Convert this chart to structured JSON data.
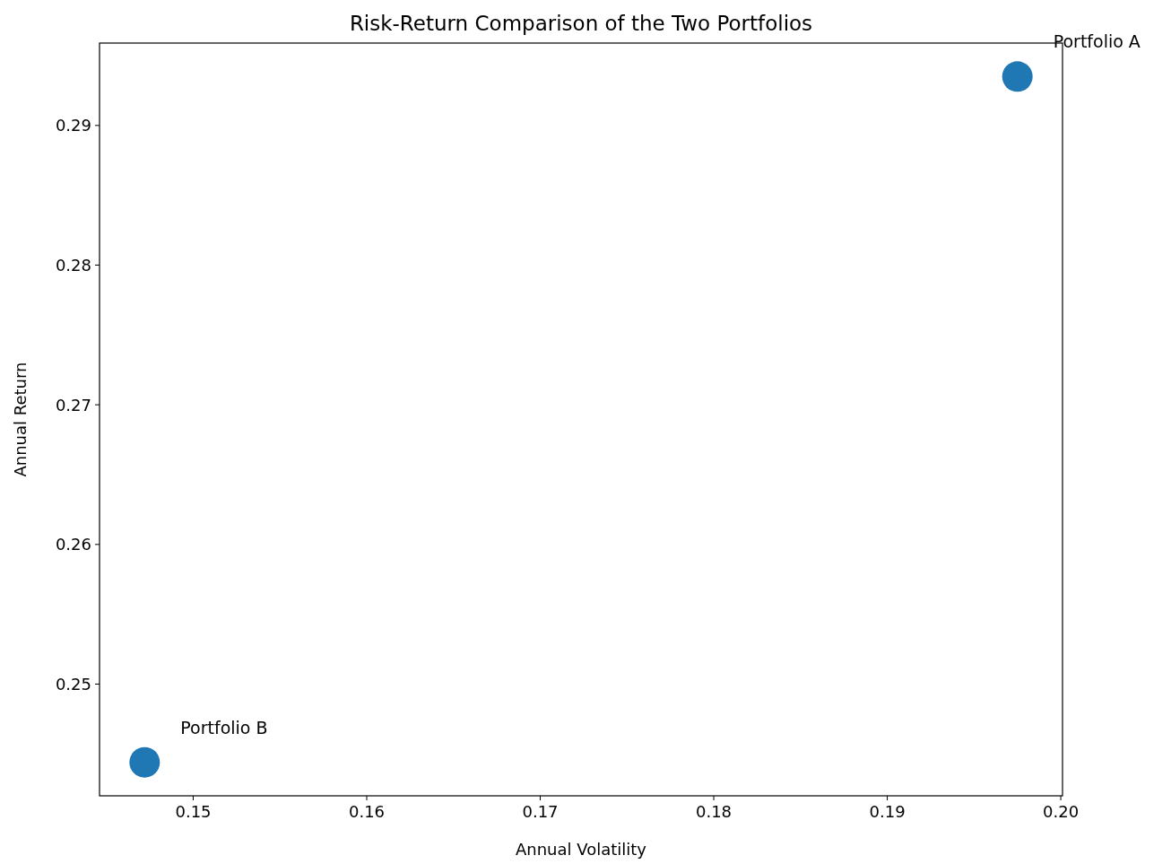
{
  "chart_data": {
    "type": "scatter",
    "title": "Risk-Return Comparison of the Two Portfolios",
    "xlabel": "Annual Volatility",
    "ylabel": "Annual Return",
    "x": [
      0.1975,
      0.1472
    ],
    "series": [
      {
        "color": "#1f77b4",
        "values": [
          0.2935,
          0.2444
        ]
      }
    ],
    "xlim": [
      0.1446,
      0.2001
    ],
    "ylim": [
      0.242,
      0.2959
    ],
    "xticks": [
      0.15,
      0.16,
      0.17,
      0.18,
      0.19,
      {
        "value": 0.2,
        "label": "0.20"
      }
    ],
    "yticks": [
      0.25,
      0.26,
      0.27,
      0.28,
      0.29
    ],
    "annotations": [
      {
        "text": "Portfolio A",
        "x": 0.1975,
        "y": 0.2935
      },
      {
        "text": "Portfolio B",
        "x": 0.1472,
        "y": 0.2444
      }
    ],
    "marker": "circle",
    "grid": false
  }
}
